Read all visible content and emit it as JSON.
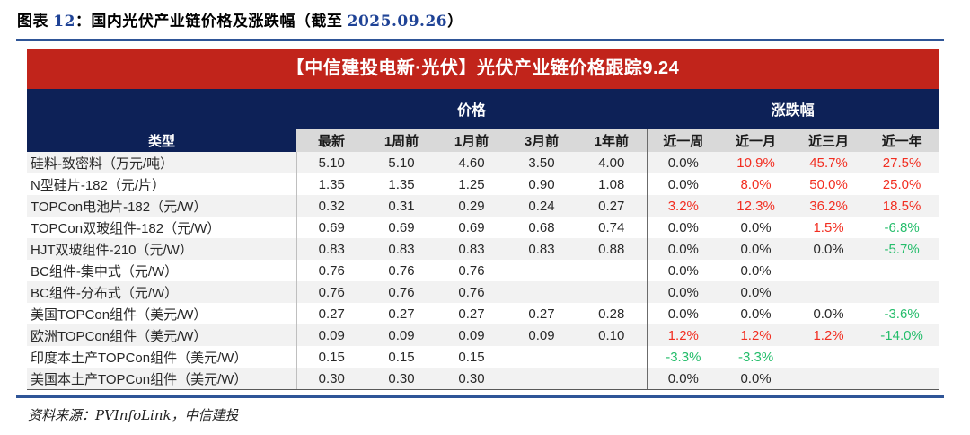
{
  "figure_title": {
    "prefix": "图表 ",
    "number": "12",
    "middle": "：国内光伏产业链价格及涨跌幅（截至 ",
    "date": "2025.09.26",
    "suffix": "）"
  },
  "banner": {
    "text": "【中信建投电新·光伏】光伏产业链价格跟踪9.24"
  },
  "table": {
    "group_headers": {
      "price": "价格",
      "change": "涨跌幅"
    },
    "type_header": "类型",
    "price_columns": [
      "最新",
      "1周前",
      "1月前",
      "3月前",
      "1年前"
    ],
    "change_columns": [
      "近一周",
      "近一月",
      "近三月",
      "近一年"
    ],
    "rows": [
      {
        "label": "硅料-致密料（万元/吨）",
        "prices": [
          "5.10",
          "5.10",
          "4.60",
          "3.50",
          "4.00"
        ],
        "changes": [
          {
            "v": "0.0%",
            "dir": "flat"
          },
          {
            "v": "10.9%",
            "dir": "up"
          },
          {
            "v": "45.7%",
            "dir": "up"
          },
          {
            "v": "27.5%",
            "dir": "up"
          }
        ]
      },
      {
        "label": "N型硅片-182（元/片）",
        "prices": [
          "1.35",
          "1.35",
          "1.25",
          "0.90",
          "1.08"
        ],
        "changes": [
          {
            "v": "0.0%",
            "dir": "flat"
          },
          {
            "v": "8.0%",
            "dir": "up"
          },
          {
            "v": "50.0%",
            "dir": "up"
          },
          {
            "v": "25.0%",
            "dir": "up"
          }
        ]
      },
      {
        "label": "TOPCon电池片-182（元/W）",
        "prices": [
          "0.32",
          "0.31",
          "0.29",
          "0.24",
          "0.27"
        ],
        "changes": [
          {
            "v": "3.2%",
            "dir": "up"
          },
          {
            "v": "12.3%",
            "dir": "up"
          },
          {
            "v": "36.2%",
            "dir": "up"
          },
          {
            "v": "18.5%",
            "dir": "up"
          }
        ]
      },
      {
        "label": "TOPCon双玻组件-182（元/W）",
        "prices": [
          "0.69",
          "0.69",
          "0.69",
          "0.68",
          "0.74"
        ],
        "changes": [
          {
            "v": "0.0%",
            "dir": "flat"
          },
          {
            "v": "0.0%",
            "dir": "flat"
          },
          {
            "v": "1.5%",
            "dir": "up"
          },
          {
            "v": "-6.8%",
            "dir": "down"
          }
        ]
      },
      {
        "label": "HJT双玻组件-210（元/W）",
        "prices": [
          "0.83",
          "0.83",
          "0.83",
          "0.83",
          "0.88"
        ],
        "changes": [
          {
            "v": "0.0%",
            "dir": "flat"
          },
          {
            "v": "0.0%",
            "dir": "flat"
          },
          {
            "v": "0.0%",
            "dir": "flat"
          },
          {
            "v": "-5.7%",
            "dir": "down"
          }
        ]
      },
      {
        "label": "BC组件-集中式（元/W）",
        "prices": [
          "0.76",
          "0.76",
          "0.76",
          "",
          ""
        ],
        "changes": [
          {
            "v": "0.0%",
            "dir": "flat"
          },
          {
            "v": "0.0%",
            "dir": "flat"
          },
          {
            "v": "",
            "dir": "none"
          },
          {
            "v": "",
            "dir": "none"
          }
        ]
      },
      {
        "label": "BC组件-分布式（元/W）",
        "prices": [
          "0.76",
          "0.76",
          "0.76",
          "",
          ""
        ],
        "changes": [
          {
            "v": "0.0%",
            "dir": "flat"
          },
          {
            "v": "0.0%",
            "dir": "flat"
          },
          {
            "v": "",
            "dir": "none"
          },
          {
            "v": "",
            "dir": "none"
          }
        ]
      },
      {
        "label": "美国TOPCon组件（美元/W）",
        "prices": [
          "0.27",
          "0.27",
          "0.27",
          "0.27",
          "0.28"
        ],
        "changes": [
          {
            "v": "0.0%",
            "dir": "flat"
          },
          {
            "v": "0.0%",
            "dir": "flat"
          },
          {
            "v": "0.0%",
            "dir": "flat"
          },
          {
            "v": "-3.6%",
            "dir": "down"
          }
        ]
      },
      {
        "label": "欧洲TOPCon组件（美元/W）",
        "prices": [
          "0.09",
          "0.09",
          "0.09",
          "0.09",
          "0.10"
        ],
        "changes": [
          {
            "v": "1.2%",
            "dir": "up"
          },
          {
            "v": "1.2%",
            "dir": "up"
          },
          {
            "v": "1.2%",
            "dir": "up"
          },
          {
            "v": "-14.0%",
            "dir": "down"
          }
        ]
      },
      {
        "label": "印度本土产TOPCon组件（美元/W）",
        "prices": [
          "0.15",
          "0.15",
          "0.15",
          "",
          ""
        ],
        "changes": [
          {
            "v": "-3.3%",
            "dir": "down"
          },
          {
            "v": "-3.3%",
            "dir": "down"
          },
          {
            "v": "",
            "dir": "none"
          },
          {
            "v": "",
            "dir": "none"
          }
        ]
      },
      {
        "label": "美国本土产TOPCon组件（美元/W）",
        "prices": [
          "0.30",
          "0.30",
          "0.30",
          "",
          ""
        ],
        "changes": [
          {
            "v": "0.0%",
            "dir": "flat"
          },
          {
            "v": "0.0%",
            "dir": "flat"
          },
          {
            "v": "",
            "dir": "none"
          },
          {
            "v": "",
            "dir": "none"
          }
        ]
      }
    ]
  },
  "footer": {
    "source": "资料来源：PVInfoLink，中信建投"
  },
  "colors": {
    "banner_red": "#C1241B",
    "header_navy": "#0D2157",
    "subheader_gray": "#D9D9D9",
    "stripe_gray": "#F2F2F2",
    "up_red": "#F22E21",
    "down_green": "#25BD6B",
    "rule_blue": "#2F5597"
  }
}
